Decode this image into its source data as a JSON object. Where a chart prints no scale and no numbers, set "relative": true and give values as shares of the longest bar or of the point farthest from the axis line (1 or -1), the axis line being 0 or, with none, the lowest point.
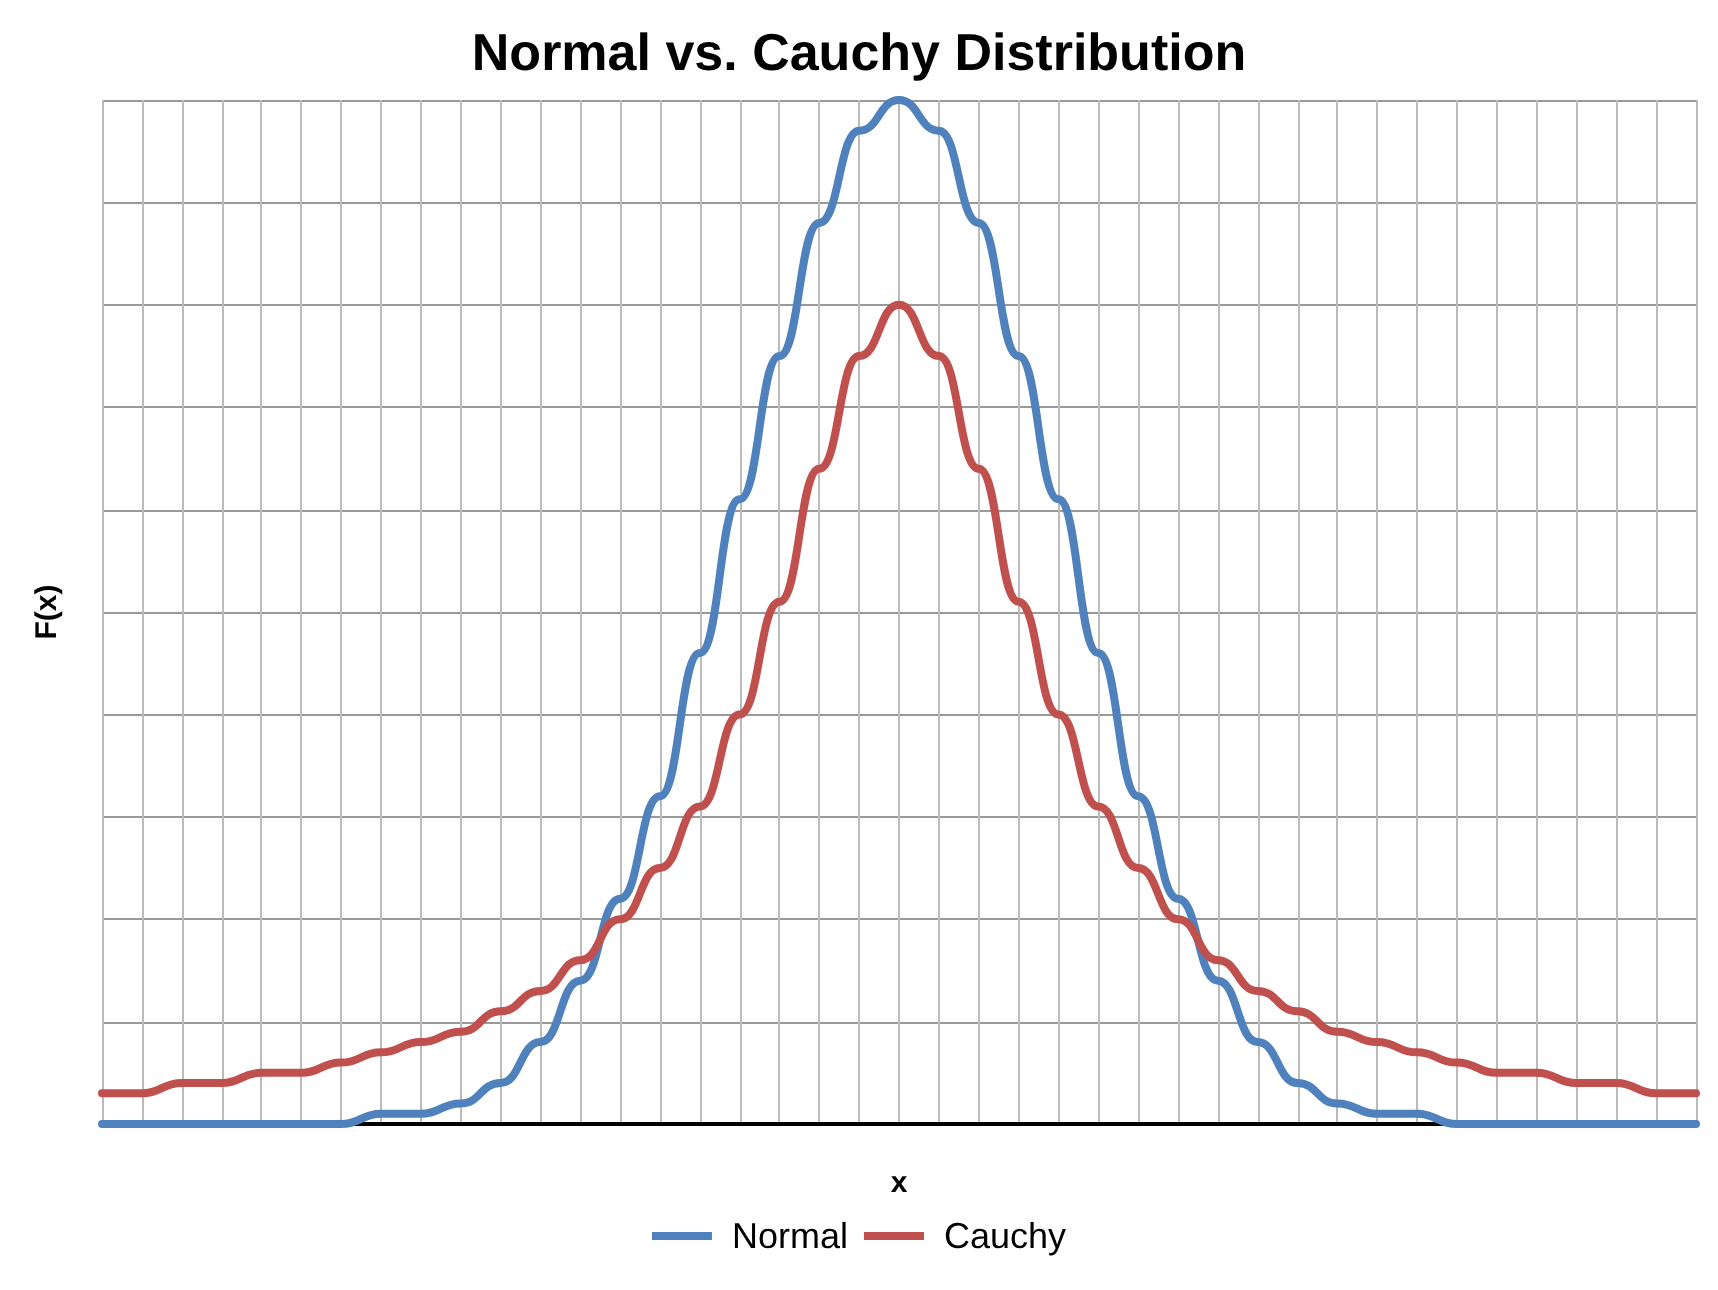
{
  "chart_data": {
    "type": "line",
    "title": "Normal vs. Cauchy Distribution",
    "xlabel": "x",
    "ylabel": "F(x)",
    "relative": true,
    "grid": true,
    "legend": "bottom",
    "marker": "none",
    "line_style": "solid",
    "categories": [
      null,
      null,
      null,
      null,
      null,
      null,
      null,
      null,
      null,
      null,
      null,
      null,
      null,
      null,
      null,
      null,
      null,
      null,
      null,
      null,
      null,
      null,
      null,
      null,
      null,
      null,
      null,
      null,
      null,
      null,
      null,
      null,
      null,
      null,
      null,
      null,
      null,
      null,
      null,
      null,
      null
    ],
    "series": [
      {
        "name": "Normal",
        "color": "#4f81bd",
        "values": [
          0,
          0,
          0,
          0,
          0,
          0,
          0,
          0.01,
          0.01,
          0.02,
          0.04,
          0.08,
          0.14,
          0.22,
          0.32,
          0.46,
          0.61,
          0.75,
          0.88,
          0.97,
          1.0,
          0.97,
          0.88,
          0.75,
          0.61,
          0.46,
          0.32,
          0.22,
          0.14,
          0.08,
          0.04,
          0.02,
          0.01,
          0.01,
          0,
          0,
          0,
          0,
          0,
          0,
          0
        ]
      },
      {
        "name": "Cauchy",
        "color": "#c0504d",
        "values": [
          0.03,
          0.03,
          0.04,
          0.04,
          0.05,
          0.05,
          0.06,
          0.07,
          0.08,
          0.09,
          0.11,
          0.13,
          0.16,
          0.2,
          0.25,
          0.31,
          0.4,
          0.51,
          0.64,
          0.75,
          0.8,
          0.75,
          0.64,
          0.51,
          0.4,
          0.31,
          0.25,
          0.2,
          0.16,
          0.13,
          0.11,
          0.09,
          0.08,
          0.07,
          0.06,
          0.05,
          0.05,
          0.04,
          0.04,
          0.03,
          0.03
        ]
      }
    ]
  }
}
